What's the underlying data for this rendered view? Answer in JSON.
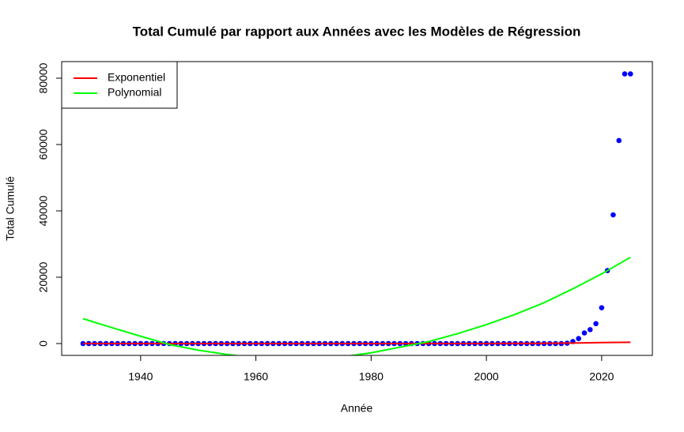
{
  "chart_data": {
    "type": "scatter",
    "title": "Total Cumulé par rapport aux Années avec les Modèles de Régression",
    "x_label": "Année",
    "y_label": "Total Cumulé",
    "xlim": [
      1926.3,
      2028.8
    ],
    "ylim": [
      -3570,
      85000
    ],
    "xticks": [
      1940,
      1960,
      1980,
      2000,
      2020
    ],
    "yticks": [
      0,
      20000,
      40000,
      60000,
      80000
    ],
    "legend": "top-left",
    "points": {
      "color": "#0000ff",
      "x": [
        1930,
        1931,
        1932,
        1933,
        1934,
        1935,
        1936,
        1937,
        1938,
        1939,
        1940,
        1941,
        1942,
        1943,
        1944,
        1945,
        1946,
        1947,
        1948,
        1949,
        1950,
        1951,
        1952,
        1953,
        1954,
        1955,
        1956,
        1957,
        1958,
        1959,
        1960,
        1961,
        1962,
        1963,
        1964,
        1965,
        1966,
        1967,
        1968,
        1969,
        1970,
        1971,
        1972,
        1973,
        1974,
        1975,
        1976,
        1977,
        1978,
        1979,
        1980,
        1981,
        1982,
        1983,
        1984,
        1985,
        1986,
        1987,
        1988,
        1989,
        1990,
        1991,
        1992,
        1993,
        1994,
        1995,
        1996,
        1997,
        1998,
        1999,
        2000,
        2001,
        2002,
        2003,
        2004,
        2005,
        2006,
        2007,
        2008,
        2009,
        2010,
        2011,
        2012,
        2013,
        2014,
        2015,
        2016,
        2017,
        2018,
        2019,
        2020,
        2021,
        2022,
        2023,
        2024,
        2025
      ],
      "values": [
        0,
        0,
        0,
        0,
        0,
        0,
        0,
        0,
        0,
        0,
        0,
        0,
        0,
        0,
        0,
        0,
        0,
        0,
        0,
        0,
        0,
        0,
        0,
        0,
        0,
        0,
        0,
        0,
        0,
        0,
        0,
        0,
        0,
        0,
        0,
        0,
        0,
        0,
        0,
        0,
        0,
        0,
        0,
        0,
        0,
        0,
        0,
        0,
        0,
        0,
        0,
        0,
        0,
        0,
        0,
        0,
        0,
        0,
        0,
        0,
        0,
        0,
        0,
        0,
        0,
        0,
        0,
        0,
        0,
        0,
        0,
        0,
        0,
        0,
        0,
        0,
        0,
        0,
        0,
        0,
        0,
        0,
        0,
        0,
        100,
        600,
        1500,
        3200,
        4200,
        6000,
        10800,
        22000,
        38800,
        61200,
        81300,
        81300
      ]
    },
    "series": [
      {
        "name": "Exponentiel",
        "color": "#ff0000",
        "x": [
          1930,
          1935,
          1940,
          1945,
          1950,
          1955,
          1960,
          1965,
          1970,
          1975,
          1980,
          1985,
          1990,
          1995,
          2000,
          2005,
          2010,
          2015,
          2020,
          2025
        ],
        "values": [
          0,
          0,
          0,
          0,
          0,
          0,
          0,
          0,
          0,
          0,
          0,
          1,
          2,
          5,
          12,
          30,
          70,
          160,
          300,
          400
        ]
      },
      {
        "name": "Polynomial",
        "color": "#00ff00",
        "x": [
          1930,
          1935,
          1940,
          1945,
          1950,
          1955,
          1960,
          1965,
          1970,
          1975,
          1980,
          1985,
          1990,
          1995,
          2000,
          2005,
          2010,
          2015,
          2020,
          2025
        ],
        "values": [
          7500,
          4800,
          2200,
          -300,
          -2000,
          -3300,
          -4300,
          -4700,
          -4600,
          -4000,
          -2800,
          -1100,
          600,
          3000,
          5700,
          8800,
          12300,
          16500,
          21000,
          26000
        ]
      }
    ]
  }
}
